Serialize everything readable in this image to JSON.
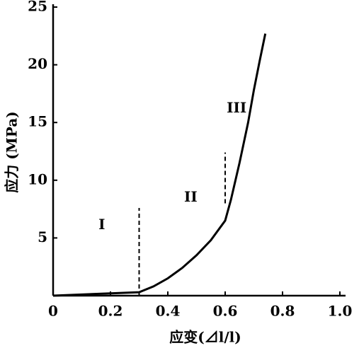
{
  "chart_data": {
    "type": "line",
    "xlabel": "应变(⊿l/l)",
    "ylabel": "应力 (MPa)",
    "x": [
      0,
      0.1,
      0.2,
      0.3,
      0.35,
      0.4,
      0.45,
      0.5,
      0.55,
      0.6,
      0.62,
      0.65,
      0.68,
      0.7,
      0.72,
      0.74
    ],
    "values": [
      0,
      0.1,
      0.2,
      0.3,
      0.8,
      1.5,
      2.4,
      3.5,
      4.8,
      6.5,
      8.3,
      11.5,
      15,
      17.8,
      20.3,
      22.7
    ],
    "color": "#000000",
    "xlim": [
      0,
      1
    ],
    "xticks": [
      0,
      0.2,
      0.4,
      0.6,
      0.8,
      {
        "value": 1,
        "label": "1.0"
      }
    ],
    "ylim": [
      0,
      25
    ],
    "yticks": [
      5,
      10,
      15,
      20,
      25
    ],
    "dividers": [
      {
        "x": 0.3,
        "y": [
          0,
          7.6
        ]
      },
      {
        "x": 0.6,
        "y": [
          8,
          12.4
        ]
      }
    ],
    "annotations": [
      {
        "text": "I",
        "x": 0.17,
        "y": 6.1
      },
      {
        "text": "II",
        "x": 0.48,
        "y": 8.5
      },
      {
        "text": "III",
        "x": 0.64,
        "y": 16.2
      }
    ]
  }
}
